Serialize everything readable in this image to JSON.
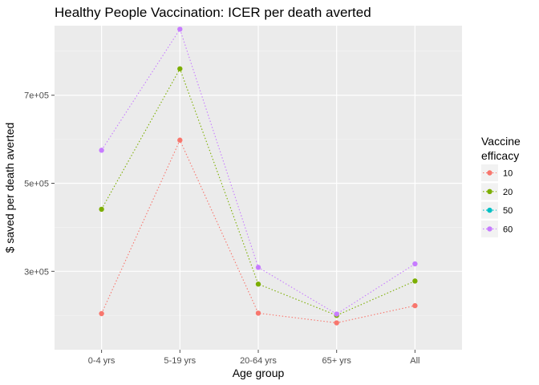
{
  "chart_data": {
    "type": "line",
    "title": "Healthy People Vaccination: ICER per death averted",
    "xlabel": "Age group",
    "ylabel": "$ saved per death averted",
    "categories": [
      "0-4 yrs",
      "5-19 yrs",
      "20-64 yrs",
      "65+ yrs",
      "All"
    ],
    "ylim": [
      122000,
      858000
    ],
    "yticks": [
      300000,
      500000,
      700000
    ],
    "ytick_labels": [
      "3e+05",
      "5e+05",
      "7e+05"
    ],
    "legend": {
      "title_lines": [
        "Vaccine",
        "efficacy"
      ],
      "placement": "right"
    },
    "grid": true,
    "series": [
      {
        "name": "10",
        "color": "#F8766D",
        "values": [
          204000,
          598000,
          205000,
          183000,
          222000
        ]
      },
      {
        "name": "20",
        "color": "#7CAE00",
        "values": [
          441000,
          760000,
          271000,
          200000,
          278000
        ]
      },
      {
        "name": "50",
        "color": "#00BFC4",
        "values": [
          null,
          null,
          null,
          null,
          null
        ]
      },
      {
        "name": "60",
        "color": "#C77CFF",
        "values": [
          575000,
          850000,
          309000,
          203000,
          317000
        ]
      }
    ]
  }
}
